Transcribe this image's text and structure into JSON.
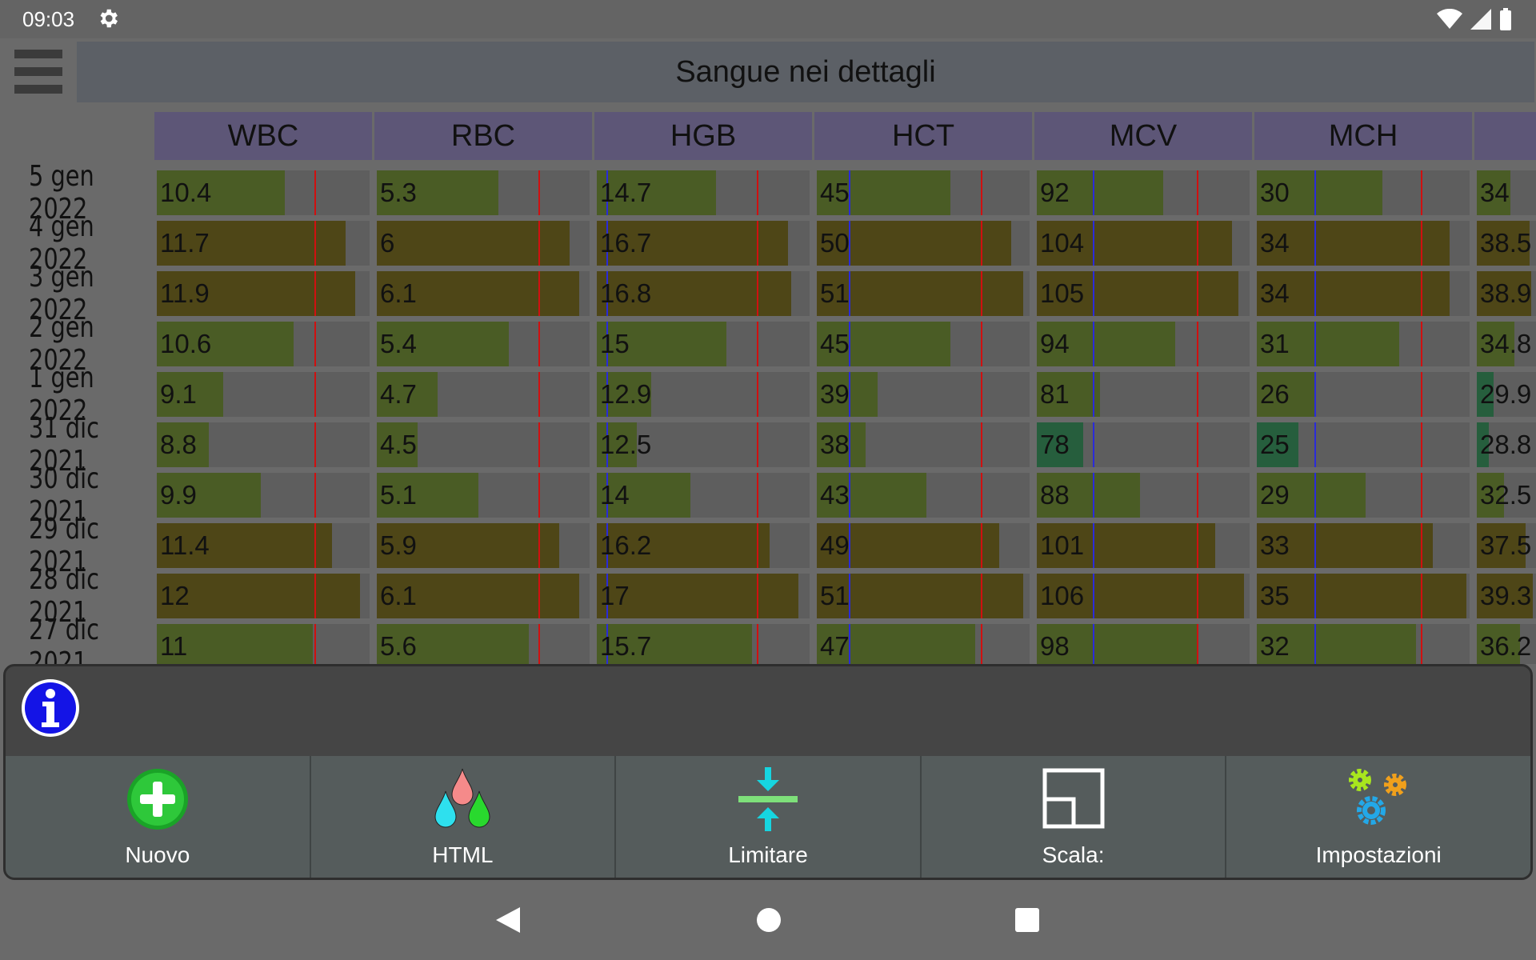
{
  "status": {
    "time": "09:03"
  },
  "title": "Sangue nei dettagli",
  "colors": {
    "green": "#4a5c25",
    "olive": "#4e4617",
    "teal": "#265e3d",
    "ref_low": "#2b2bd9",
    "ref_high": "#d01010"
  },
  "columns": [
    "WBC",
    "RBC",
    "HGB",
    "HCT",
    "MCV",
    "MCH",
    ""
  ],
  "rows": [
    {
      "date": "5 gen 2022",
      "values": [
        "10.4",
        "5.3",
        "14.7",
        "45",
        "92",
        "30",
        "34"
      ]
    },
    {
      "date": "4 gen 2022",
      "values": [
        "11.7",
        "6",
        "16.7",
        "50",
        "104",
        "34",
        "38.5"
      ]
    },
    {
      "date": "3 gen 2022",
      "values": [
        "11.9",
        "6.1",
        "16.8",
        "51",
        "105",
        "34",
        "38.9"
      ]
    },
    {
      "date": "2 gen 2022",
      "values": [
        "10.6",
        "5.4",
        "15",
        "45",
        "94",
        "31",
        "34.8"
      ]
    },
    {
      "date": "1 gen 2022",
      "values": [
        "9.1",
        "4.7",
        "12.9",
        "39",
        "81",
        "26",
        "29.9"
      ]
    },
    {
      "date": "31 dic 2021",
      "values": [
        "8.8",
        "4.5",
        "12.5",
        "38",
        "78",
        "25",
        "28.8"
      ]
    },
    {
      "date": "30 dic 2021",
      "values": [
        "9.9",
        "5.1",
        "14",
        "43",
        "88",
        "29",
        "32.5"
      ]
    },
    {
      "date": "29 dic 2021",
      "values": [
        "11.4",
        "5.9",
        "16.2",
        "49",
        "101",
        "33",
        "37.5"
      ]
    },
    {
      "date": "28 dic 2021",
      "values": [
        "12",
        "6.1",
        "17",
        "51",
        "106",
        "35",
        "39.3"
      ]
    },
    {
      "date": "27 dic 2021",
      "values": [
        "11",
        "5.6",
        "15.7",
        "47",
        "98",
        "32",
        "36.2"
      ]
    }
  ],
  "toolbar": {
    "new_label": "Nuovo",
    "html_label": "HTML",
    "limit_label": "Limitare",
    "scale_label": "Scala:",
    "settings_label": "Impostazioni"
  }
}
